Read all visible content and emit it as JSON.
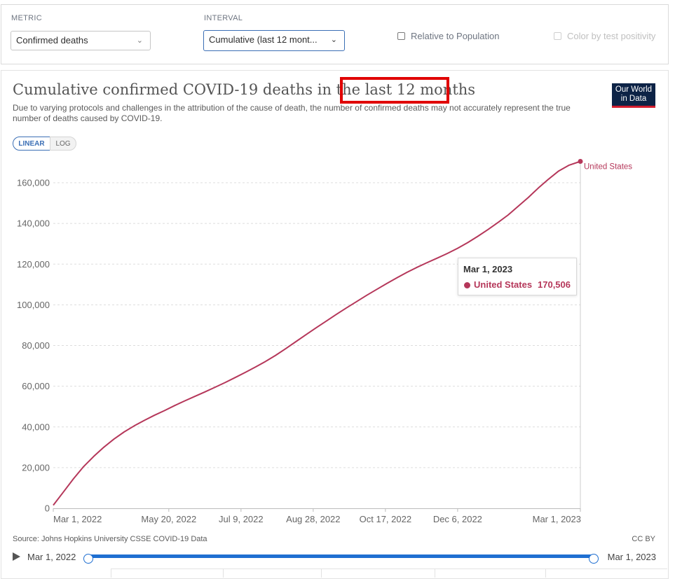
{
  "controls": {
    "metric_label": "METRIC",
    "metric_value": "Confirmed deaths",
    "interval_label": "INTERVAL",
    "interval_value": "Cumulative (last 12 mont...",
    "relative_label": "Relative to Population",
    "color_label": "Color by test positivity"
  },
  "header": {
    "title": "Cumulative confirmed COVID-19 deaths in the last 12 months",
    "subtitle": "Due to varying protocols and challenges in the attribution of the cause of death, the number of confirmed deaths may not accurately represent the true number of deaths caused by COVID-19.",
    "logo_line1": "Our World",
    "logo_line2": "in Data"
  },
  "scale_toggle": {
    "linear": "LINEAR",
    "log": "LOG"
  },
  "tooltip": {
    "date": "Mar 1, 2023",
    "series": "United States",
    "value": "170,506"
  },
  "footer": {
    "source": "Source: Johns Hopkins University CSSE COVID-19 Data",
    "license": "CC BY"
  },
  "timeline": {
    "start": "Mar 1, 2022",
    "end": "Mar 1, 2023"
  },
  "colors": {
    "series": "#b5375a",
    "accent": "#1f6fd1",
    "highlight": "#e00000"
  },
  "chart_data": {
    "type": "line",
    "title": "Cumulative confirmed COVID-19 deaths in the last 12 months",
    "xlabel": "",
    "ylabel": "",
    "ylim": [
      0,
      170000
    ],
    "yticks": [
      0,
      20000,
      40000,
      60000,
      80000,
      100000,
      120000,
      140000,
      160000
    ],
    "ytick_labels": [
      "0",
      "20,000",
      "40,000",
      "60,000",
      "80,000",
      "100,000",
      "120,000",
      "140,000",
      "160,000"
    ],
    "xticks": [
      "Mar 1, 2022",
      "May 20, 2022",
      "Jul 9, 2022",
      "Aug 28, 2022",
      "Oct 17, 2022",
      "Dec 6, 2022",
      "Mar 1, 2023"
    ],
    "grid": true,
    "legend": "end-of-line label",
    "series": [
      {
        "name": "United States",
        "x": [
          "2022-03-01",
          "2022-03-08",
          "2022-03-15",
          "2022-03-22",
          "2022-03-29",
          "2022-04-05",
          "2022-04-12",
          "2022-04-19",
          "2022-04-26",
          "2022-05-03",
          "2022-05-10",
          "2022-05-17",
          "2022-05-24",
          "2022-05-31",
          "2022-06-07",
          "2022-06-14",
          "2022-06-21",
          "2022-06-28",
          "2022-07-05",
          "2022-07-12",
          "2022-07-19",
          "2022-07-26",
          "2022-08-02",
          "2022-08-09",
          "2022-08-16",
          "2022-08-23",
          "2022-08-30",
          "2022-09-06",
          "2022-09-13",
          "2022-09-20",
          "2022-09-27",
          "2022-10-04",
          "2022-10-11",
          "2022-10-18",
          "2022-10-25",
          "2022-11-01",
          "2022-11-08",
          "2022-11-15",
          "2022-11-22",
          "2022-11-29",
          "2022-12-06",
          "2022-12-13",
          "2022-12-20",
          "2022-12-27",
          "2023-01-03",
          "2023-01-10",
          "2023-01-17",
          "2023-01-24",
          "2023-01-31",
          "2023-02-07",
          "2023-02-14",
          "2023-02-21",
          "2023-03-01"
        ],
        "values": [
          1500,
          8000,
          14500,
          20500,
          25500,
          30000,
          34000,
          37500,
          40500,
          43200,
          45700,
          48000,
          50500,
          52800,
          55000,
          57200,
          59500,
          61800,
          64300,
          66800,
          69400,
          72200,
          75200,
          78500,
          81900,
          85300,
          88700,
          92000,
          95300,
          98500,
          101600,
          104700,
          107600,
          110500,
          113300,
          116000,
          118500,
          120800,
          123000,
          125300,
          127800,
          130600,
          133700,
          137000,
          140500,
          144200,
          148500,
          152800,
          157500,
          161800,
          165800,
          168600,
          170506
        ]
      }
    ]
  }
}
